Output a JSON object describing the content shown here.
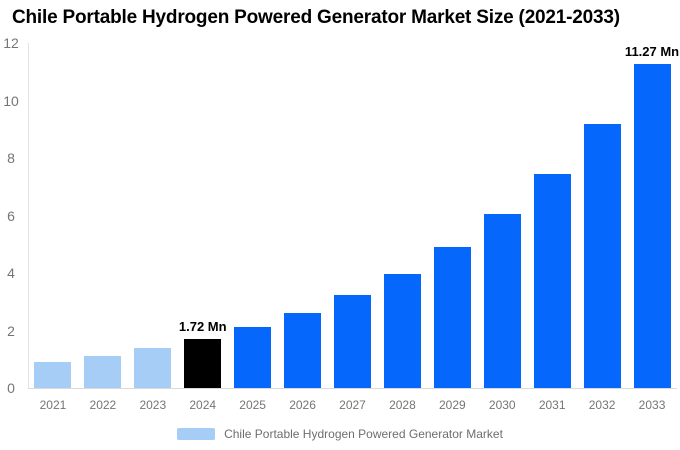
{
  "header": {
    "title": "Chile Portable Hydrogen Powered Generator Market Size (2021-2033)"
  },
  "chart_data": {
    "type": "bar",
    "title": "Chile Portable Hydrogen Powered Generator Market Size (2021-2033)",
    "categories": [
      "2021",
      "2022",
      "2023",
      "2024",
      "2025",
      "2026",
      "2027",
      "2028",
      "2029",
      "2030",
      "2031",
      "2032",
      "2033"
    ],
    "series": [
      {
        "name": "Chile Portable Hydrogen Powered Generator Market",
        "values": [
          0.92,
          1.13,
          1.4,
          1.72,
          2.12,
          2.62,
          3.23,
          3.98,
          4.9,
          6.05,
          7.45,
          9.19,
          11.27
        ]
      }
    ],
    "point_labels": [
      "",
      "",
      "",
      "1.72 Mn",
      "",
      "",
      "",
      "",
      "",
      "",
      "",
      "",
      "11.27 Mn"
    ],
    "point_colors": [
      "#A5CDF6",
      "#A5CDF6",
      "#A5CDF6",
      "#000000",
      "#0667FD",
      "#0667FD",
      "#0667FD",
      "#0667FD",
      "#0667FD",
      "#0667FD",
      "#0667FD",
      "#0667FD",
      "#0667FD"
    ],
    "unit": "Mn",
    "xlabel": "",
    "ylabel": "",
    "ylim": [
      0,
      12
    ],
    "yticks": [
      "0",
      "2",
      "4",
      "6",
      "8",
      "10",
      "12"
    ],
    "grid": false,
    "legend_position": "bottom"
  },
  "legend": {
    "items": [
      {
        "label": "Chile Portable Hydrogen Powered Generator Market",
        "swatch_color": "#A5CDF6"
      }
    ]
  },
  "colors": {
    "historical_bar": "#A5CDF6",
    "base_year_bar": "#000000",
    "forecast_bar": "#0667FD",
    "axis_line": "#E2E2E2",
    "tick_text": "#757575",
    "legend_text": "#6E6E6E",
    "title_text": "#000000",
    "value_label_text": "#000000",
    "background": "#FFFFFF"
  }
}
